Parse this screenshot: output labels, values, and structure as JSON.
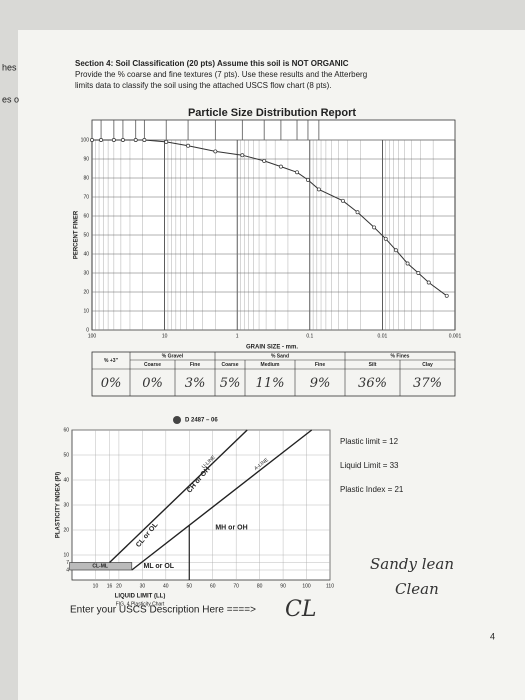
{
  "margin_fragments": [
    "hes",
    "es o"
  ],
  "instructions": {
    "lines": [
      "Section 4: Soil Classification (20 pts) Assume this soil is NOT ORGANIC",
      "Provide the % coarse and fine textures (7 pts).  Use these results and the Atterberg",
      "limits data to classify the soil using the attached USCS flow chart (8 pts)."
    ]
  },
  "chart_data": [
    {
      "type": "line",
      "title": "Particle Size Distribution Report",
      "x_label": "GRAIN SIZE - mm.",
      "y_label": "PERCENT FINER",
      "log_x": true,
      "grid": true,
      "xlim": [
        100,
        0.001
      ],
      "ylim": [
        0,
        100
      ],
      "xticks": [
        100,
        10,
        1,
        0.1,
        0.01,
        0.001
      ],
      "yticks": [
        0,
        10,
        20,
        30,
        40,
        50,
        60,
        70,
        80,
        90,
        100
      ],
      "x": [
        100,
        75,
        50,
        37.5,
        25,
        19,
        9.5,
        4.75,
        2,
        0.85,
        0.425,
        0.25,
        0.15,
        0.106,
        0.075,
        0.035,
        0.022,
        0.013,
        0.009,
        0.0065,
        0.0045,
        0.0032,
        0.0023,
        0.0013
      ],
      "series": [
        {
          "color": "#333333",
          "values": [
            100,
            100,
            100,
            100,
            100,
            100,
            99,
            97,
            94,
            92,
            89,
            86,
            83,
            79,
            74,
            68,
            62,
            54,
            48,
            42,
            35,
            30,
            25,
            18
          ]
        }
      ]
    },
    {
      "type": "line",
      "title": "D 2487 – 06",
      "x_label": "LIQUID LIMIT (LL)",
      "y_label": "PLASTICITY INDEX (PI)",
      "caption": "FIG. 4  Plasticity Chart",
      "grid": true,
      "xlim": [
        0,
        110
      ],
      "ylim": [
        0,
        60
      ],
      "xticks": [
        10,
        16,
        20,
        30,
        40,
        50,
        60,
        70,
        80,
        90,
        100,
        110
      ],
      "yticks": [
        4,
        7,
        10,
        20,
        30,
        40,
        50,
        60
      ],
      "series": [
        {
          "name": "U-LINE",
          "color": "#222222",
          "x": [
            16,
            74.7
          ],
          "values": [
            7,
            60
          ]
        },
        {
          "name": "A-LINE",
          "color": "#222222",
          "x": [
            25.5,
            102.2
          ],
          "values": [
            4,
            60
          ]
        }
      ],
      "zones": [
        "CL or OL",
        "CH or OH",
        "ML or OL",
        "MH or OH",
        "CL-ML"
      ]
    }
  ],
  "gradation_table": {
    "plus3": "% +3\"",
    "groups": [
      "% Gravel",
      "% Sand",
      "% Fines"
    ],
    "columns": [
      "Coarse",
      "Fine",
      "Coarse",
      "Medium",
      "Fine",
      "Silt",
      "Clay"
    ],
    "handwritten": [
      "0%",
      "0%",
      "3%",
      "5%",
      "11%",
      "9%",
      "36%",
      "37%"
    ]
  },
  "atterberg": {
    "lines": [
      "Plastic limit = 12",
      "Liquid Limit = 33",
      "Plastic Index = 21"
    ]
  },
  "notes": {
    "handwritten": [
      "Sandy lean",
      "Clean"
    ]
  },
  "answer": {
    "prompt": "Enter your USCS Description Here ====>",
    "handwritten": "CL"
  },
  "page_number": "4"
}
